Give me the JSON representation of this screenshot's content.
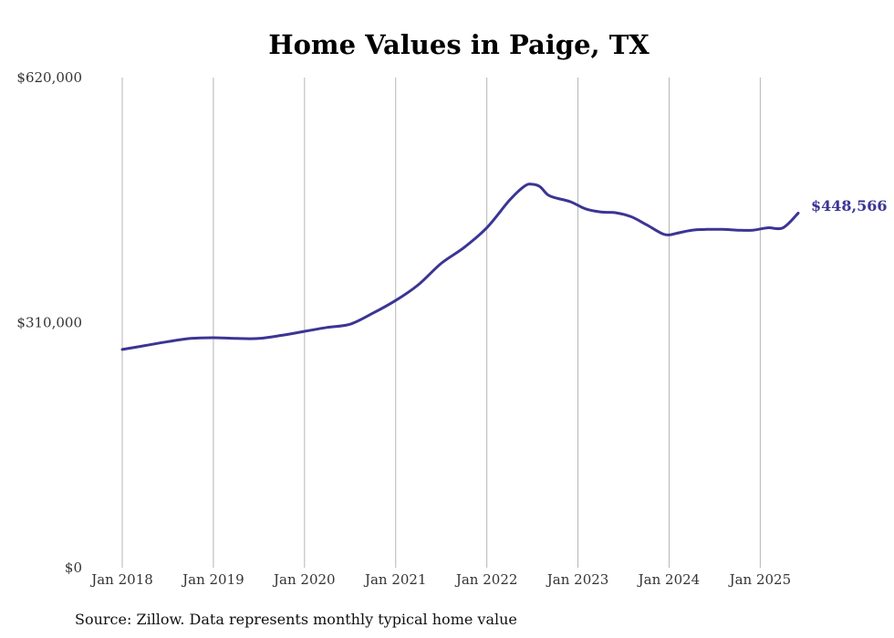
{
  "chart_data": {
    "type": "line",
    "title": "Home Values in Paige, TX",
    "xlabel": "",
    "ylabel": "",
    "ylim": [
      0,
      620000
    ],
    "y_ticks": [
      {
        "value": 0,
        "label": "$0"
      },
      {
        "value": 310000,
        "label": "$310,000"
      },
      {
        "value": 620000,
        "label": "$620,000"
      }
    ],
    "x_ticks": [
      {
        "value": "2018-01",
        "label": "Jan 2018"
      },
      {
        "value": "2019-01",
        "label": "Jan 2019"
      },
      {
        "value": "2020-01",
        "label": "Jan 2020"
      },
      {
        "value": "2021-01",
        "label": "Jan 2021"
      },
      {
        "value": "2022-01",
        "label": "Jan 2022"
      },
      {
        "value": "2023-01",
        "label": "Jan 2023"
      },
      {
        "value": "2024-01",
        "label": "Jan 2024"
      },
      {
        "value": "2025-01",
        "label": "Jan 2025"
      }
    ],
    "xlim": [
      "2018-01",
      "2025-06"
    ],
    "grid": "vertical",
    "line_color": "#3b3594",
    "series": [
      {
        "x": [
          "2018-01",
          "2018-04",
          "2018-07",
          "2018-10",
          "2019-01",
          "2019-04",
          "2019-07",
          "2019-10",
          "2020-01",
          "2020-04",
          "2020-07",
          "2020-10",
          "2021-01",
          "2021-04",
          "2021-07",
          "2021-10",
          "2022-01",
          "2022-04",
          "2022-06",
          "2022-07",
          "2022-08",
          "2022-09",
          "2022-10",
          "2022-12",
          "2023-02",
          "2023-04",
          "2023-06",
          "2023-08",
          "2023-10",
          "2023-12",
          "2024-01",
          "2024-02",
          "2024-04",
          "2024-06",
          "2024-08",
          "2024-10",
          "2024-12",
          "2025-02",
          "2025-04",
          "2025-06"
        ],
        "values": [
          276000,
          281000,
          286000,
          290000,
          291000,
          290000,
          290000,
          294000,
          299000,
          304000,
          308000,
          322000,
          338000,
          358000,
          385000,
          405000,
          430000,
          465000,
          483000,
          485000,
          482000,
          472000,
          468000,
          463000,
          454000,
          450000,
          449000,
          444000,
          434000,
          423000,
          421000,
          423000,
          427000,
          428000,
          428000,
          427000,
          427000,
          430000,
          430000,
          448566
        ]
      }
    ],
    "end_label": "$448,566",
    "source_note": "Source: Zillow. Data represents monthly typical home value"
  }
}
